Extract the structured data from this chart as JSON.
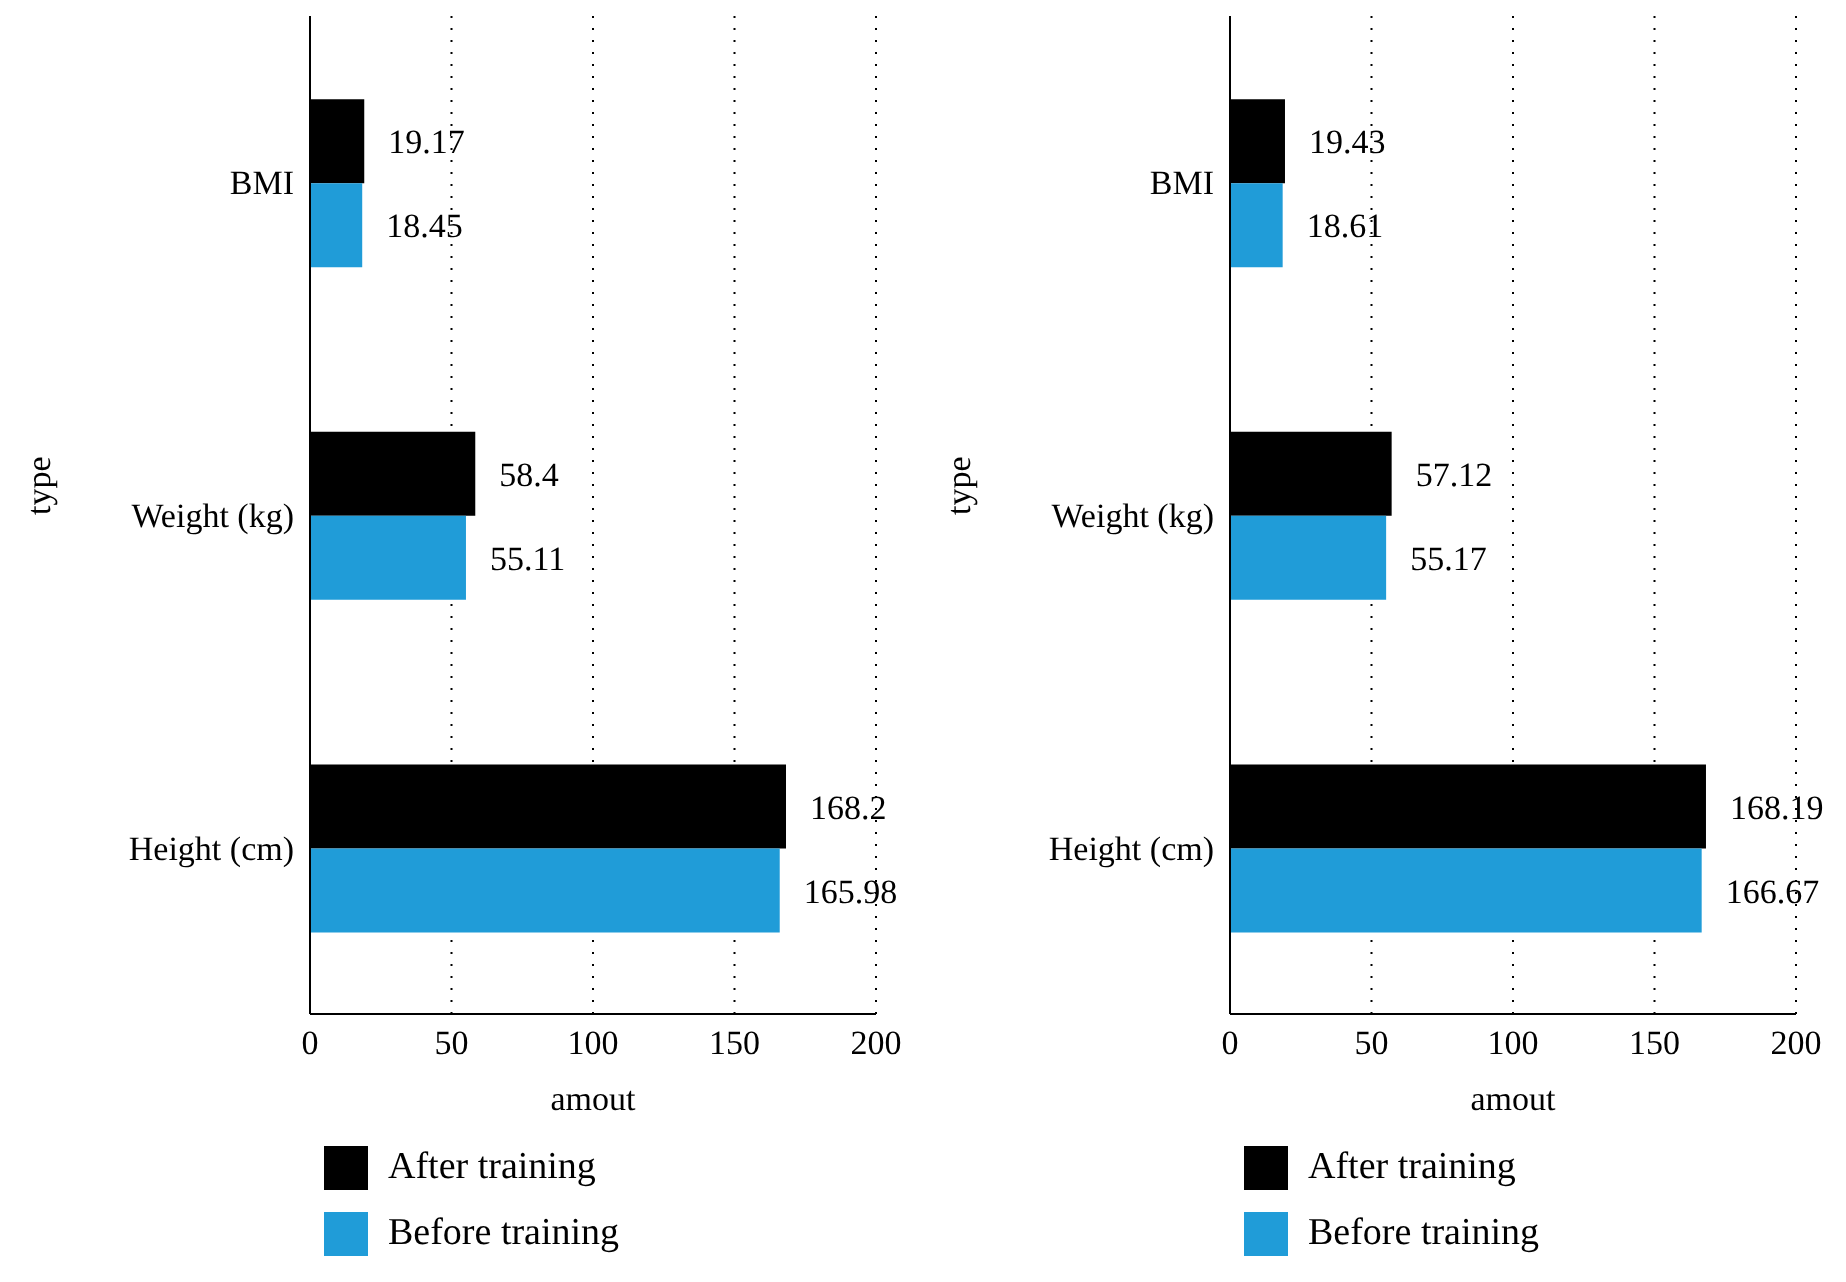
{
  "chart_data": [
    {
      "type": "bar",
      "orientation": "horizontal",
      "categories": [
        "BMI",
        "Weight (kg)",
        "Height (cm)"
      ],
      "xlabel": "amout",
      "ylabel": "type",
      "series": [
        {
          "name": "After training",
          "color": "#000000",
          "values": [
            19.17,
            58.4,
            168.2
          ]
        },
        {
          "name": "Before training",
          "color": "#209cd8",
          "values": [
            18.45,
            55.11,
            165.98
          ]
        }
      ],
      "xlim": [
        0,
        200
      ],
      "xticks": [
        0,
        50,
        100,
        150,
        200
      ],
      "grid": "x",
      "legend": "bottom",
      "data_labels": true
    },
    {
      "type": "bar",
      "orientation": "horizontal",
      "categories": [
        "BMI",
        "Weight (kg)",
        "Height (cm)"
      ],
      "xlabel": "amout",
      "ylabel": "type",
      "series": [
        {
          "name": "After training",
          "color": "#000000",
          "values": [
            19.43,
            57.12,
            168.19
          ]
        },
        {
          "name": "Before training",
          "color": "#209cd8",
          "values": [
            18.61,
            55.17,
            166.67
          ]
        }
      ],
      "xlim": [
        0,
        200
      ],
      "xticks": [
        0,
        50,
        100,
        150,
        200
      ],
      "grid": "x",
      "legend": "bottom",
      "data_labels": true
    }
  ]
}
